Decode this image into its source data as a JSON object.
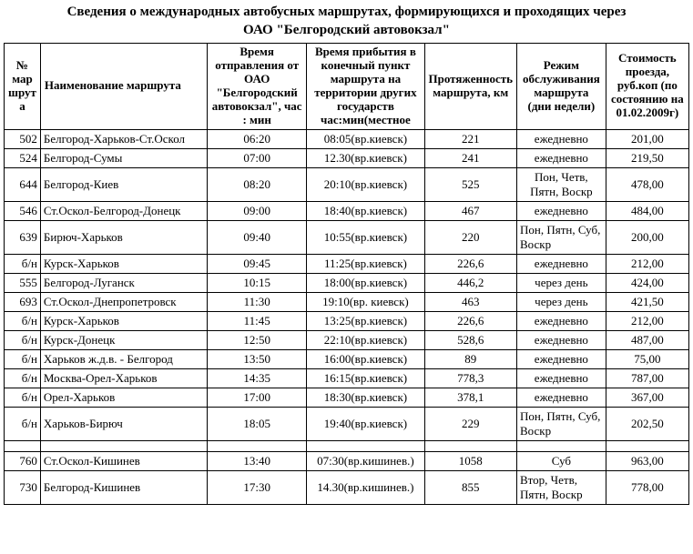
{
  "title_line1": "Сведения о международных автобусных маршрутах, формирующихся и проходящих через",
  "title_line2": "ОАО \"Белгородский автовокзал\"",
  "columns": {
    "num": "№ мар шрут а",
    "name": "Наименование маршрута",
    "departure": "Время отправления от ОАО \"Белгородский автовокзал\", час : мин",
    "arrival": "Время прибытия в конечный пункт маршрута на территории других государств час:мин(местное",
    "distance": "Протяженность маршрута, км",
    "schedule": "Режим обслуживания маршрута (дни недели)",
    "cost": "Стоимость проезда, руб.коп (по состоянию на 01.02.2009г)"
  },
  "rows": [
    {
      "num": "502",
      "name": "Белгород-Харьков-Ст.Оскол",
      "dep": "06:20",
      "arr": "08:05(вр.киевск)",
      "dist": "221",
      "sched": "ежедневно",
      "sched_align": "center",
      "cost": "201,00"
    },
    {
      "num": "524",
      "name": "Белгород-Сумы",
      "dep": "07:00",
      "arr": "12.30(вр.киевск)",
      "dist": "241",
      "sched": "ежедневно",
      "sched_align": "center",
      "cost": "219,50"
    },
    {
      "num": "644",
      "name": "Белгород-Киев",
      "dep": "08:20",
      "arr": "20:10(вр.киевск)",
      "dist": "525",
      "sched": "Пон, Четв, Пятн, Воскр",
      "sched_align": "center",
      "cost": "478,00"
    },
    {
      "num": "546",
      "name": "Ст.Оскол-Белгород-Донецк",
      "dep": "09:00",
      "arr": "18:40(вр.киевск)",
      "dist": "467",
      "sched": "ежедневно",
      "sched_align": "center",
      "cost": "484,00"
    },
    {
      "num": "639",
      "name": "Бирюч-Харьков",
      "dep": "09:40",
      "arr": "10:55(вр.киевск)",
      "dist": "220",
      "sched": "Пон, Пятн, Суб, Воскр",
      "sched_align": "left",
      "cost": "200,00"
    },
    {
      "num": "б/н",
      "name": "Курск-Харьков",
      "dep": "09:45",
      "arr": "11:25(вр.киевск)",
      "dist": "226,6",
      "sched": "ежедневно",
      "sched_align": "center",
      "cost": "212,00"
    },
    {
      "num": "555",
      "name": "Белгород-Луганск",
      "dep": "10:15",
      "arr": "18:00(вр.киевск)",
      "dist": "446,2",
      "sched": "через день",
      "sched_align": "center",
      "cost": "424,00"
    },
    {
      "num": "693",
      "name": "Ст.Оскол-Днепропетровск",
      "dep": "11:30",
      "arr": "19:10(вр. киевск)",
      "dist": "463",
      "sched": "через день",
      "sched_align": "center",
      "cost": "421,50"
    },
    {
      "num": "б/н",
      "name": "Курск-Харьков",
      "dep": "11:45",
      "arr": "13:25(вр.киевск)",
      "dist": "226,6",
      "sched": "ежедневно",
      "sched_align": "center",
      "cost": "212,00"
    },
    {
      "num": "б/н",
      "name": "Курск-Донецк",
      "dep": "12:50",
      "arr": "22:10(вр.киевск)",
      "dist": "528,6",
      "sched": "ежедневно",
      "sched_align": "center",
      "cost": "487,00"
    },
    {
      "num": "б/н",
      "name": "Харьков ж.д.в. - Белгород",
      "dep": "13:50",
      "arr": "16:00(вр.киевск)",
      "dist": "89",
      "sched": "ежедневно",
      "sched_align": "center",
      "cost": "75,00"
    },
    {
      "num": "б/н",
      "name": "Москва-Орел-Харьков",
      "dep": "14:35",
      "arr": "16:15(вр.киевск)",
      "dist": "778,3",
      "sched": "ежедневно",
      "sched_align": "center",
      "cost": "787,00"
    },
    {
      "num": "б/н",
      "name": "Орел-Харьков",
      "dep": "17:00",
      "arr": "18:30(вр.киевск)",
      "dist": "378,1",
      "sched": "ежедневно",
      "sched_align": "center",
      "cost": "367,00"
    },
    {
      "num": "б/н",
      "name": "Харьков-Бирюч",
      "dep": "18:05",
      "arr": "19:40(вр.киевск)",
      "dist": "229",
      "sched": "Пон, Пятн, Суб, Воскр",
      "sched_align": "left",
      "cost": "202,50"
    },
    {
      "spacer": true
    },
    {
      "num": "760",
      "name": "Ст.Оскол-Кишинев",
      "dep": "13:40",
      "arr": "07:30(вр.кишинев.)",
      "dist": "1058",
      "sched": "Суб",
      "sched_align": "center",
      "cost": "963,00"
    },
    {
      "num": "730",
      "name": "Белгород-Кишинев",
      "dep": "17:30",
      "arr": "14.30(вр.кишинев.)",
      "dist": "855",
      "sched": "Втор, Четв, Пятн, Воскр",
      "sched_align": "left",
      "cost": "778,00"
    }
  ]
}
